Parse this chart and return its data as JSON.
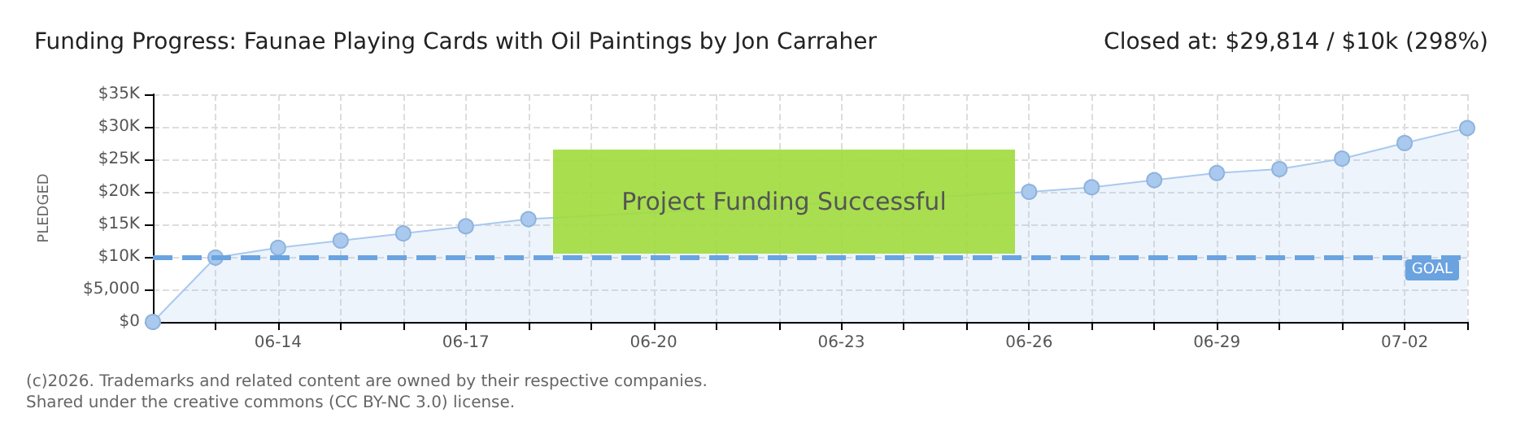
{
  "chart_data": {
    "type": "area",
    "title": "Funding Progress: Faunae Playing Cards with Oil Paintings by Jon Carraher",
    "subtitle": "Closed at: $29,814 / $10k (298%)",
    "ylabel": "PLEDGED",
    "categories": [
      null,
      null,
      "06-14",
      null,
      null,
      "06-17",
      null,
      null,
      "06-20",
      null,
      null,
      "06-23",
      null,
      null,
      "06-26",
      null,
      null,
      "06-29",
      null,
      null,
      "07-02",
      null
    ],
    "series": [
      {
        "color": "#a9c9ef",
        "values": [
          0,
          9900,
          11400,
          12500,
          13600,
          14700,
          15800,
          null,
          null,
          null,
          null,
          null,
          null,
          null,
          20000,
          20700,
          21800,
          22900,
          23500,
          25100,
          27500,
          29800
        ]
      }
    ],
    "ylim": [
      0,
      35000
    ],
    "yticks": [
      {
        "value": 0,
        "label": "$0"
      },
      {
        "value": 5000,
        "label": "$5,000"
      },
      {
        "value": 10000,
        "label": "$10K"
      },
      {
        "value": 15000,
        "label": "$15K"
      },
      {
        "value": 20000,
        "label": "$20K"
      },
      {
        "value": 25000,
        "label": "$25K"
      },
      {
        "value": 30000,
        "label": "$30K"
      },
      {
        "value": 35000,
        "label": "$35K"
      }
    ],
    "ref_lines": [
      {
        "axis": "y",
        "value": 10000,
        "label": "GOAL",
        "color": "#6aa3e0",
        "line_style": "dashed"
      }
    ],
    "annotations": [
      "Project Funding Successful",
      "(c)2026. Trademarks and related content are owned by their respective companies.",
      "Shared under the creative commons (CC BY-NC 3.0) license."
    ],
    "grid": true,
    "marker": "circle"
  }
}
